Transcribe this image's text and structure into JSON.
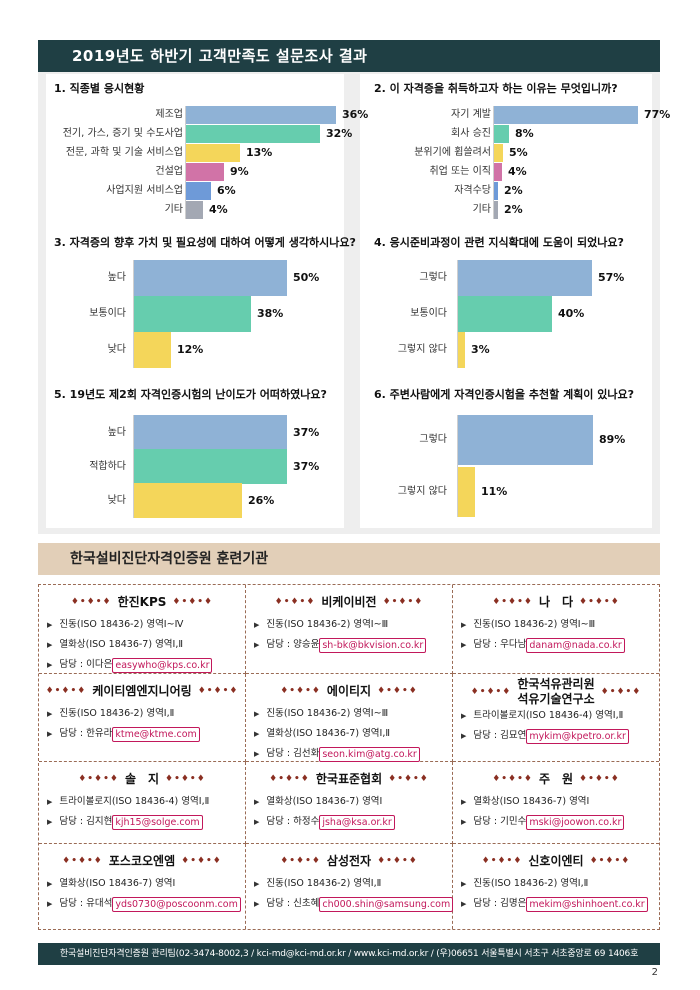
{
  "survey": {
    "title": "2019년도 하반기 고객만족도 설문조사 결과"
  },
  "questions": [
    {
      "q": "1. 직종별 응시현황",
      "chart_data": {
        "type": "bar",
        "categories": [
          "제조업",
          "전기, 가스, 증기 및 수도사업",
          "전문, 과학 및 기술 서비스업",
          "건설업",
          "사업지원 서비스업",
          "기타"
        ],
        "values": [
          36,
          32,
          13,
          9,
          6,
          4
        ],
        "labels": [
          "36%",
          "32%",
          "13%",
          "9%",
          "6%",
          "4%"
        ],
        "colors": [
          "#8fb2d6",
          "#66cdae",
          "#f4d65a",
          "#d173a7",
          "#6e9ad8",
          "#a3a8b3"
        ],
        "xlim": [
          0,
          40
        ]
      }
    },
    {
      "q": "2. 이 자격증을 취득하고자 하는 이유는 무엇입니까?",
      "chart_data": {
        "type": "bar",
        "categories": [
          "자기 계발",
          "회사 승진",
          "분위기에 휩쓸려서",
          "취업 또는 이직",
          "자격수당",
          "기타"
        ],
        "values": [
          77,
          8,
          5,
          4,
          2,
          2
        ],
        "labels": [
          "77%",
          "8%",
          "5%",
          "4%",
          "2%",
          "2%"
        ],
        "colors": [
          "#8fb2d6",
          "#66cdae",
          "#f4d65a",
          "#d173a7",
          "#6e9ad8",
          "#a3a8b3"
        ],
        "xlim": [
          0,
          80
        ]
      }
    },
    {
      "q": "3. 자격증의 향후 가치 및 필요성에 대하여 어떻게 생각하시나요?",
      "chart_data": {
        "type": "bar",
        "categories": [
          "높다",
          "보통이다",
          "낮다"
        ],
        "values": [
          50,
          38,
          12
        ],
        "labels": [
          "50%",
          "38%",
          "12%"
        ],
        "colors": [
          "#8fb2d6",
          "#66cdae",
          "#f4d65a"
        ],
        "xlim": [
          0,
          58
        ]
      }
    },
    {
      "q": "4. 응시준비과정이 관련 지식확대에 도움이 되었나요?",
      "chart_data": {
        "type": "bar",
        "categories": [
          "그렇다",
          "보통이다",
          "그렇지 않다"
        ],
        "values": [
          57,
          40,
          3
        ],
        "labels": [
          "57%",
          "40%",
          "3%"
        ],
        "colors": [
          "#8fb2d6",
          "#66cdae",
          "#f4d65a"
        ],
        "xlim": [
          0,
          67
        ]
      }
    },
    {
      "q": "5. 19년도 제2회 자격인증시험의 난이도가 어떠하였나요?",
      "chart_data": {
        "type": "bar",
        "categories": [
          "높다",
          "적합하다",
          "낮다"
        ],
        "values": [
          37,
          37,
          26
        ],
        "labels": [
          "37%",
          "37%",
          "26%"
        ],
        "colors": [
          "#8fb2d6",
          "#66cdae",
          "#f4d65a"
        ],
        "xlim": [
          0,
          43
        ]
      }
    },
    {
      "q": "6. 주변사람에게 자격인증시험을 추천할 계획이 있나요?",
      "chart_data": {
        "type": "bar",
        "categories": [
          "그렇다",
          "그렇지 않다"
        ],
        "values": [
          89,
          11
        ],
        "labels": [
          "89%",
          "11%"
        ],
        "colors": [
          "#8fb2d6",
          "#f4d65a"
        ],
        "xlim": [
          0,
          100
        ]
      }
    }
  ],
  "institutions_header": "한국설비진단자격인증원 훈련기관",
  "ornament": "♦•♦•♦",
  "bullet": "▶",
  "institutions": [
    {
      "name": "한진KPS",
      "items": [
        {
          "text": "진동(ISO 18436-2) 영역Ⅰ~Ⅳ"
        },
        {
          "text": "열화상(ISO 18436-7) 영역Ⅰ,Ⅱ"
        },
        {
          "text": "담당 : 이다은",
          "email": "easywho@kps.co.kr"
        }
      ]
    },
    {
      "name": "비케이비전",
      "items": [
        {
          "text": "진동(ISO 18436-2) 영역Ⅰ~Ⅲ"
        },
        {
          "text": "담당 : 양승윤",
          "email": "sh-bk@bkvision.co.kr"
        }
      ]
    },
    {
      "name": "나　다",
      "items": [
        {
          "text": "진동(ISO 18436-2) 영역Ⅰ~Ⅲ"
        },
        {
          "text": "담당 : 우다남",
          "email": "danam@nada.co.kr"
        }
      ]
    },
    {
      "name": "케이티엠엔지니어링",
      "items": [
        {
          "text": "진동(ISO 18436-2) 영역Ⅰ,Ⅱ"
        },
        {
          "text": "담당 : 한유라",
          "email": "ktme@ktme.com"
        }
      ]
    },
    {
      "name": "에이티지",
      "items": [
        {
          "text": "진동(ISO 18436-2) 영역Ⅰ~Ⅲ"
        },
        {
          "text": "열화상(ISO 18436-7) 영역Ⅰ,Ⅱ"
        },
        {
          "text": "담당 : 김선화",
          "email": "seon.kim@atg.co.kr"
        }
      ]
    },
    {
      "name": "한국석유관리원\n석유기술연구소",
      "items": [
        {
          "text": "트라이볼로지(ISO 18436-4) 영역Ⅰ,Ⅱ"
        },
        {
          "text": "담당 : 김묘연",
          "email": "mykim@kpetro.or.kr"
        }
      ]
    },
    {
      "name": "솔　지",
      "items": [
        {
          "text": "트라이볼로지(ISO 18436-4) 영역Ⅰ,Ⅱ"
        },
        {
          "text": "담당 : 김지현",
          "email": "kjh15@solge.com"
        }
      ]
    },
    {
      "name": "한국표준협회",
      "items": [
        {
          "text": "열화상(ISO 18436-7) 영역Ⅰ"
        },
        {
          "text": "담당 : 하정수",
          "email": "jsha@ksa.or.kr"
        }
      ]
    },
    {
      "name": "주　원",
      "items": [
        {
          "text": "열화상(ISO 18436-7) 영역Ⅰ"
        },
        {
          "text": "담당 : 기민수",
          "email": "mski@joowon.co.kr"
        }
      ]
    },
    {
      "name": "포스코오엔엠",
      "items": [
        {
          "text": "열화상(ISO 18436-7) 영역Ⅰ"
        },
        {
          "text": "담당 : 유대석",
          "email": "yds0730@poscoonm.com"
        }
      ]
    },
    {
      "name": "삼성전자",
      "items": [
        {
          "text": "진동(ISO 18436-2) 영역Ⅰ,Ⅱ"
        },
        {
          "text": "담당 : 신초혜",
          "email": "ch000.shin@samsung.com"
        }
      ]
    },
    {
      "name": "신호이엔티",
      "items": [
        {
          "text": "진동(ISO 18436-2) 영역Ⅰ,Ⅱ"
        },
        {
          "text": "담당 : 김명은",
          "email": "mekim@shinhoent.co.kr"
        }
      ]
    }
  ],
  "footer": "한국설비진단자격인증원 관리팀(02-3474-8002,3 / kci-md@kci-md.or.kr / www.kci-md.or.kr / (우)06651 서울특별시 서초구 서초중앙로 69 1406호",
  "page_number": "2"
}
